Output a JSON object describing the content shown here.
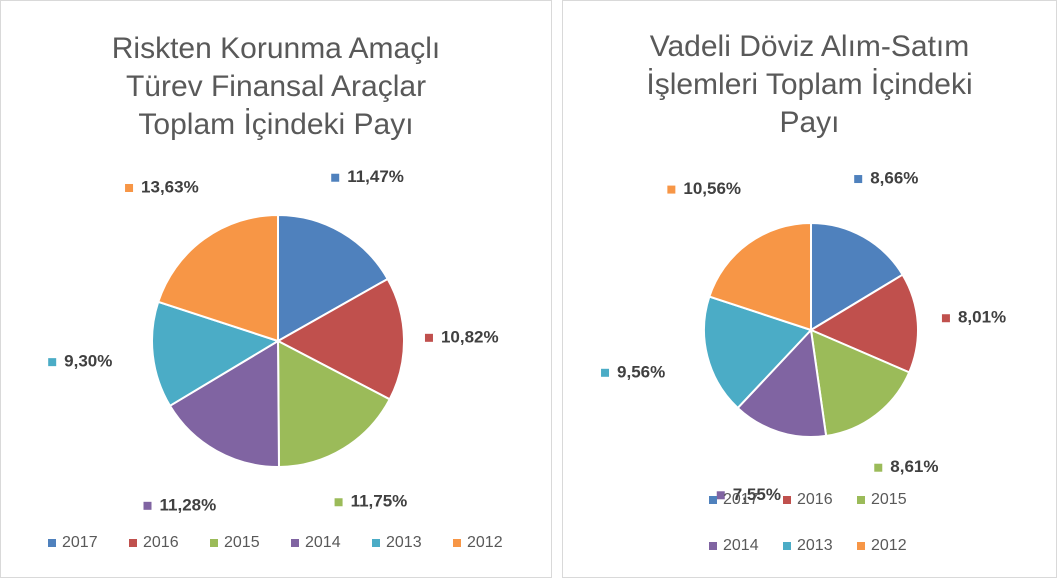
{
  "chart_data": [
    {
      "type": "pie",
      "title": [
        "Riskten Korunma Amaçlı",
        "Türev Finansal Araçlar",
        "Toplam İçindeki Payı"
      ],
      "categories": [
        "2017",
        "2016",
        "2015",
        "2014",
        "2013",
        "2012"
      ],
      "values": [
        11.47,
        10.82,
        11.75,
        11.28,
        9.3,
        13.63
      ],
      "value_labels": [
        "11,47%",
        "10,82%",
        "11,75%",
        "11,28%",
        "9,30%",
        "13,63%"
      ],
      "colors": [
        "#4f81bd",
        "#c0504d",
        "#9bbb59",
        "#8064a2",
        "#4bacc6",
        "#f79646"
      ],
      "legend": "bottom"
    },
    {
      "type": "pie",
      "title": [
        "Vadeli Döviz Alım-Satım",
        "İşlemleri Toplam İçindeki",
        "Payı"
      ],
      "categories": [
        "2017",
        "2016",
        "2015",
        "2014",
        "2013",
        "2012"
      ],
      "values": [
        8.66,
        8.01,
        8.61,
        7.55,
        9.56,
        10.56
      ],
      "value_labels": [
        "8,66%",
        "8,01%",
        "8,61%",
        "7,55%",
        "9,56%",
        "10,56%"
      ],
      "colors": [
        "#4f81bd",
        "#c0504d",
        "#9bbb59",
        "#8064a2",
        "#4bacc6",
        "#f79646"
      ],
      "legend": "bottom"
    }
  ]
}
